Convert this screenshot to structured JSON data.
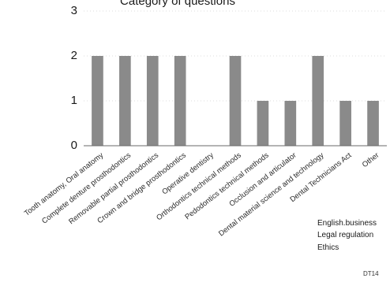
{
  "chart_data": {
    "type": "bar",
    "title": "Category of questions",
    "categories": [
      "Tooth anatomy, Oral anatomy",
      "Complete denture prosthodontics",
      "Removable partial prosthodontics",
      "Crown and bridge prosthodontics",
      "Operative dentistry",
      "Orthodontics technical methods",
      "Pedodontics technical methods",
      "Occlusion and articulator",
      "Dental material science and technology",
      "Dental Technicians Act",
      "Other"
    ],
    "values": [
      2,
      2,
      2,
      2,
      0,
      2,
      1,
      1,
      2,
      1,
      1
    ],
    "ylim": [
      0,
      3
    ],
    "yticks": [
      "0",
      "1",
      "2",
      "3"
    ],
    "xlabel": "",
    "ylabel": "",
    "colors": {
      "bar": "#8a8a8a"
    }
  },
  "annotations": {
    "other_note": [
      "English.business",
      "Legal regulation",
      "Ethics"
    ],
    "code": "DT14"
  }
}
